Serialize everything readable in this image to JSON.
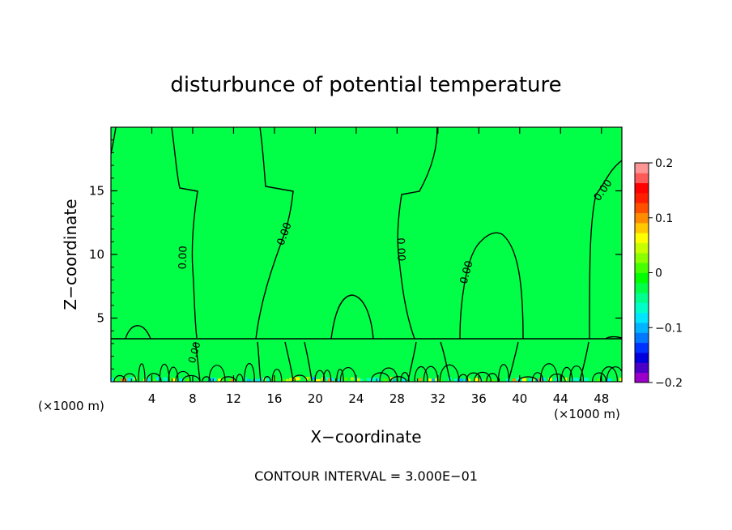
{
  "chart_data": {
    "type": "heatmap",
    "title": "disturbunce of potential temperature",
    "xlabel": "X−coordinate",
    "ylabel": "Z−coordinate",
    "x_unit_left": "(×1000 m)",
    "x_unit_right": "(×1000 m)",
    "xlim": [
      0,
      50
    ],
    "ylim": [
      0,
      20
    ],
    "x_ticks": [
      4,
      8,
      12,
      16,
      20,
      24,
      28,
      32,
      36,
      40,
      44,
      48
    ],
    "y_ticks": [
      5,
      10,
      15
    ],
    "colorbar": {
      "range": [
        -0.2,
        0.2
      ],
      "tick_values": [
        0.2,
        0.1,
        0,
        -0.1,
        -0.2
      ],
      "tick_labels": [
        "0.2",
        "0.1",
        "0",
        "−0.1",
        "−0.2"
      ],
      "colors": [
        "#9b00c8",
        "#4b00c8",
        "#0000dc",
        "#0032ff",
        "#0078ff",
        "#00b4ff",
        "#00e6ff",
        "#00ffc8",
        "#00ff8c",
        "#00ff46",
        "#00ff00",
        "#46ff00",
        "#8cff00",
        "#c8ff00",
        "#ffff00",
        "#ffc800",
        "#ff8c00",
        "#ff5000",
        "#ff1e00",
        "#ff0000",
        "#ff5a5a",
        "#ff9696"
      ]
    },
    "background_value": 0.0,
    "contour_labels": [
      "0.00",
      "0.00",
      "0.00",
      "0.00",
      "0.00",
      "0.00"
    ],
    "footer": "CONTOUR INTERVAL = 3.000E−01"
  }
}
